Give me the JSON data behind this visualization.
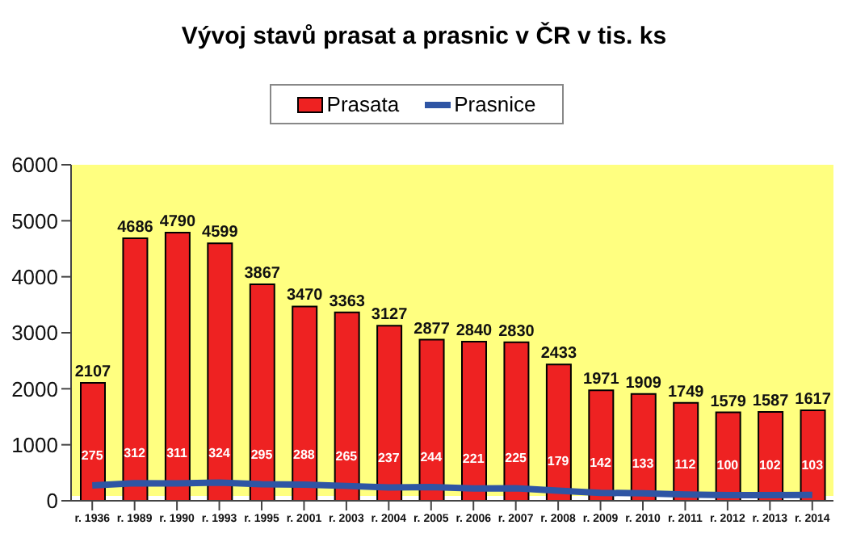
{
  "chart_data": {
    "type": "bar",
    "title": "Vývoj stavů prasat a prasnic v ČR v tis. ks",
    "categories": [
      "r. 1936",
      "r. 1989",
      "r. 1990",
      "r. 1993",
      "r. 1995",
      "r. 2001",
      "r. 2003",
      "r. 2004",
      "r. 2005",
      "r. 2006",
      "r. 2007",
      "r. 2008",
      "r. 2009",
      "r. 2010",
      "r. 2011",
      "r. 2012",
      "r. 2013",
      "r. 2014"
    ],
    "series": [
      {
        "name": "Prasata",
        "color": "#ee2222",
        "values": [
          2107,
          4686,
          4790,
          4599,
          3867,
          3470,
          3363,
          3127,
          2877,
          2840,
          2830,
          2433,
          1971,
          1909,
          1749,
          1579,
          1587,
          1617
        ]
      },
      {
        "name": "Prasnice",
        "type": "line",
        "color": "#2f55a4",
        "values": [
          275,
          312,
          311,
          324,
          295,
          288,
          265,
          237,
          244,
          221,
          225,
          179,
          142,
          133,
          112,
          100,
          102,
          103
        ]
      }
    ],
    "ylim": [
      0,
      6000
    ],
    "yticks": [
      0,
      1000,
      2000,
      3000,
      4000,
      5000,
      6000
    ],
    "grid": false,
    "legend": "top",
    "data_labels": true,
    "marker": "none"
  }
}
